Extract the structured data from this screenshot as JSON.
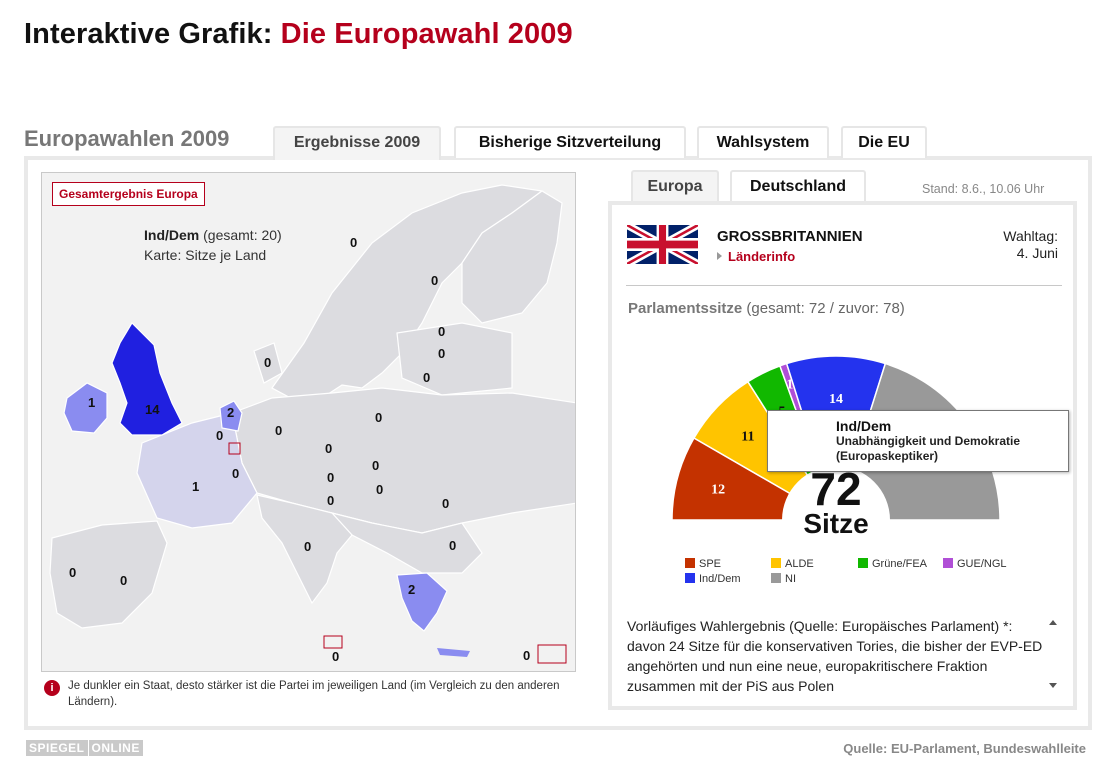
{
  "title": {
    "prefix": "Interaktive Grafik:",
    "main": "Die Europawahl 2009"
  },
  "section_title": "Europawahlen 2009",
  "main_tabs": [
    {
      "label": "Ergebnisse 2009",
      "active": true
    },
    {
      "label": "Bisherige Sitzverteilung",
      "active": false
    },
    {
      "label": "Wahlsystem",
      "active": false
    },
    {
      "label": "Die EU",
      "active": false
    }
  ],
  "map": {
    "button_label": "Gesamtergebnis Europa",
    "party_abbr": "Ind/Dem",
    "party_total": "(gesamt: 20)",
    "subtitle": "Karte: Sitze je Land",
    "seats": {
      "ireland": "1",
      "uk": "14",
      "netherlands": "2",
      "belgium": "0",
      "luxembourg": "0",
      "france": "1",
      "greece": "2",
      "norway": "0",
      "sweden": "0",
      "finland": "0",
      "estonia": "0",
      "latvia": "0",
      "lithuania": "0",
      "denmark": "0",
      "poland": "0",
      "germany": "0",
      "czech": "0",
      "slovakia": "0",
      "austria": "0",
      "hungary": "0",
      "slovenia": "0",
      "romania": "0",
      "bulgaria": "0",
      "italy": "0",
      "portugal": "0",
      "spain": "0",
      "malta": "0",
      "cyprus": "0"
    }
  },
  "note": "Je dunkler ein Staat, desto stärker ist die Partei im jeweiligen Land (im Vergleich zu den anderen Ländern).",
  "right_tabs": [
    {
      "label": "Europa",
      "active": true
    },
    {
      "label": "Deutschland",
      "active": false
    }
  ],
  "stand": "Stand: 8.6., 10.06 Uhr",
  "country": {
    "name": "GROSSBRITANNIEN",
    "info_link": "Länderinfo",
    "wahltag_label": "Wahltag:",
    "wahltag_date": "4. Juni"
  },
  "parliament": {
    "label": "Parlamentssitze",
    "detail": "(gesamt: 72 / zuvor: 78)"
  },
  "chart_data": {
    "type": "pie",
    "subtype": "semicircle",
    "center_value": "72",
    "center_label": "Sitze",
    "series": [
      {
        "name": "SPE",
        "value": 12,
        "color": "#c43200"
      },
      {
        "name": "ALDE",
        "value": 11,
        "color": "#ffc400"
      },
      {
        "name": "Grüne/FEA",
        "value": 5,
        "color": "#11b800"
      },
      {
        "name": "GUE/NGL",
        "value": 1,
        "color": "#b04fd6"
      },
      {
        "name": "Ind/Dem",
        "value": 14,
        "color": "#2433ee"
      },
      {
        "name": "NI",
        "value": 29,
        "color": "#999999"
      }
    ],
    "legend_position": "bottom"
  },
  "tooltip": {
    "abbr": "Ind/Dem",
    "line1": "Unabhängigkeit und Demokratie",
    "line2": "(Europaskeptiker)"
  },
  "result_text": "Vorläufiges Wahlergebnis (Quelle: Europäisches Parlament) *: davon 24 Sitze für die konservativen Tories, die bisher der EVP-ED angehörten und nun eine neue, europakritischere Fraktion zusammen mit der PiS aus Polen",
  "footer": {
    "logo_left": "SPIEGEL",
    "logo_right": "ONLINE",
    "source": "Quelle: EU-Parlament, Bundeswahlleite"
  },
  "colors": {
    "accent_red": "#b5001c",
    "map_land": "#dcdce0",
    "map_sea": "#f2f2f2",
    "highlight_dark": "#2020e0",
    "highlight_mid": "#8a8cf0",
    "highlight_light": "#d4d4ec"
  }
}
